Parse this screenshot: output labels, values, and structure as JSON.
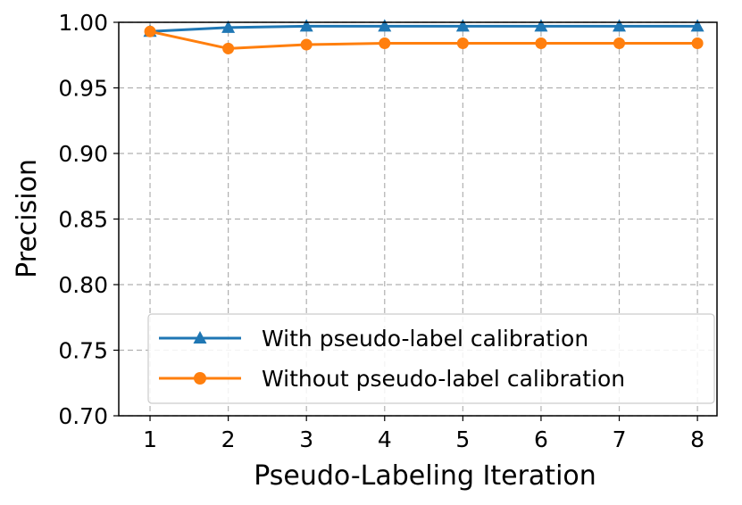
{
  "chart_data": {
    "type": "line",
    "title": "",
    "xlabel": "Pseudo-Labeling Iteration",
    "ylabel": "Precision",
    "x": [
      1,
      2,
      3,
      4,
      5,
      6,
      7,
      8
    ],
    "x_tick_labels": [
      "1",
      "2",
      "3",
      "4",
      "5",
      "6",
      "7",
      "8"
    ],
    "y_tick_labels": [
      "0.70",
      "0.75",
      "0.80",
      "0.85",
      "0.90",
      "0.95",
      "1.00"
    ],
    "y_ticks": [
      0.7,
      0.75,
      0.8,
      0.85,
      0.9,
      0.95,
      1.0
    ],
    "xlim": [
      0.6,
      8.25
    ],
    "ylim": [
      0.7,
      1.0
    ],
    "grid": true,
    "legend_position": "lower-right",
    "series": [
      {
        "name": "With pseudo-label calibration",
        "marker": "triangle",
        "color": "#1f77b4",
        "values": [
          0.993,
          0.996,
          0.997,
          0.997,
          0.997,
          0.997,
          0.997,
          0.997
        ]
      },
      {
        "name": "Without pseudo-label calibration",
        "marker": "circle",
        "color": "#ff7f0e",
        "values": [
          0.993,
          0.98,
          0.983,
          0.984,
          0.984,
          0.984,
          0.984,
          0.984
        ]
      }
    ]
  }
}
